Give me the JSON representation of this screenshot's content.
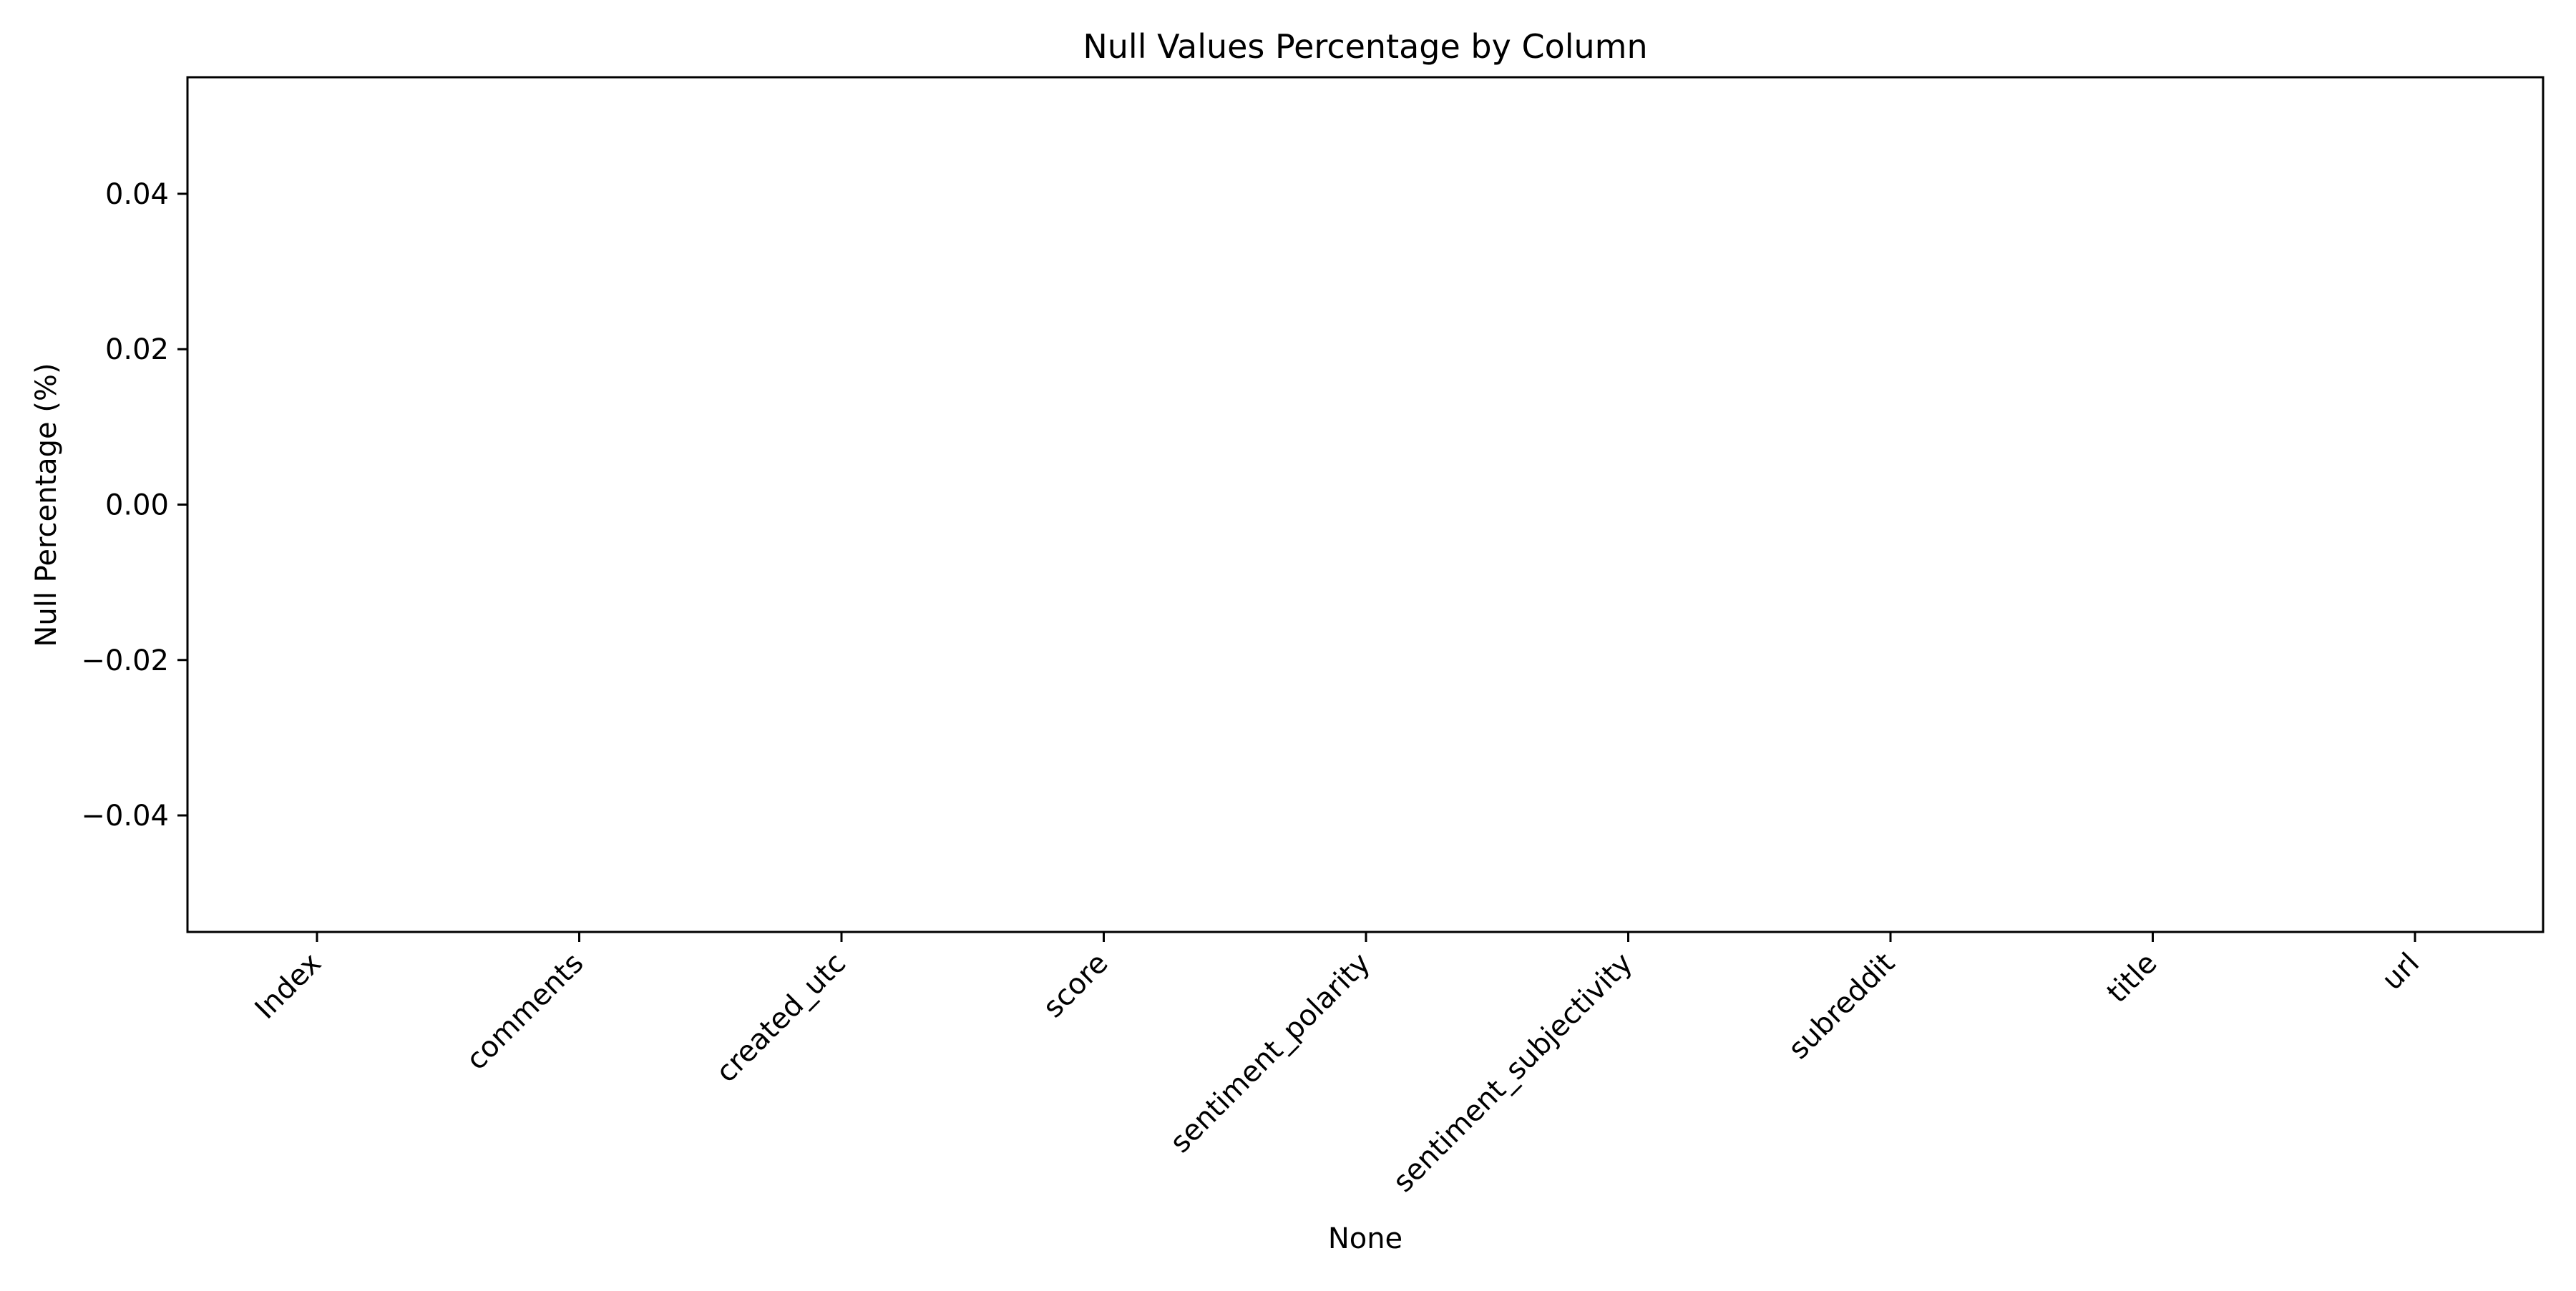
{
  "chart_data": {
    "type": "bar",
    "title": "Null Values Percentage by Column",
    "xlabel": "None",
    "ylabel": "Null Percentage (%)",
    "categories": [
      "Index",
      "comments",
      "created_utc",
      "score",
      "sentiment_polarity",
      "sentiment_subjectivity",
      "subreddit",
      "title",
      "url"
    ],
    "values": [
      0,
      0,
      0,
      0,
      0,
      0,
      0,
      0,
      0
    ],
    "ylim": [
      -0.055,
      0.055
    ],
    "yticks": [
      0.04,
      0.02,
      0.0,
      -0.02,
      -0.04
    ],
    "ytick_labels": [
      "0.04",
      "0.02",
      "0.00",
      "−0.02",
      "−0.04"
    ],
    "grid": false,
    "legend": "none",
    "colors": {
      "axis": "#000000",
      "background": "#ffffff"
    }
  }
}
